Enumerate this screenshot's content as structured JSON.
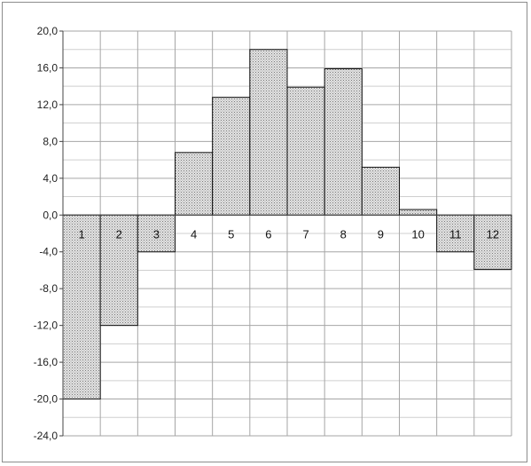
{
  "chart_data": {
    "type": "bar",
    "title": "",
    "xlabel": "",
    "ylabel": "",
    "categories": [
      "1",
      "2",
      "3",
      "4",
      "5",
      "6",
      "7",
      "8",
      "9",
      "10",
      "11",
      "12"
    ],
    "values": [
      -20.0,
      -12.0,
      -4.0,
      6.8,
      12.8,
      18.0,
      13.9,
      15.9,
      5.2,
      0.6,
      -4.0,
      -5.9
    ],
    "ylim": [
      -24.0,
      20.0
    ],
    "yticks": [
      "-24,0",
      "-20,0",
      "-16,0",
      "-12,0",
      "-8,0",
      "-4,0",
      "0,0",
      "4,0",
      "8,0",
      "12,0",
      "16,0",
      "20,0"
    ],
    "grid": "on (major and minor)",
    "legend": "none",
    "bar_fill": "dotted gray"
  }
}
